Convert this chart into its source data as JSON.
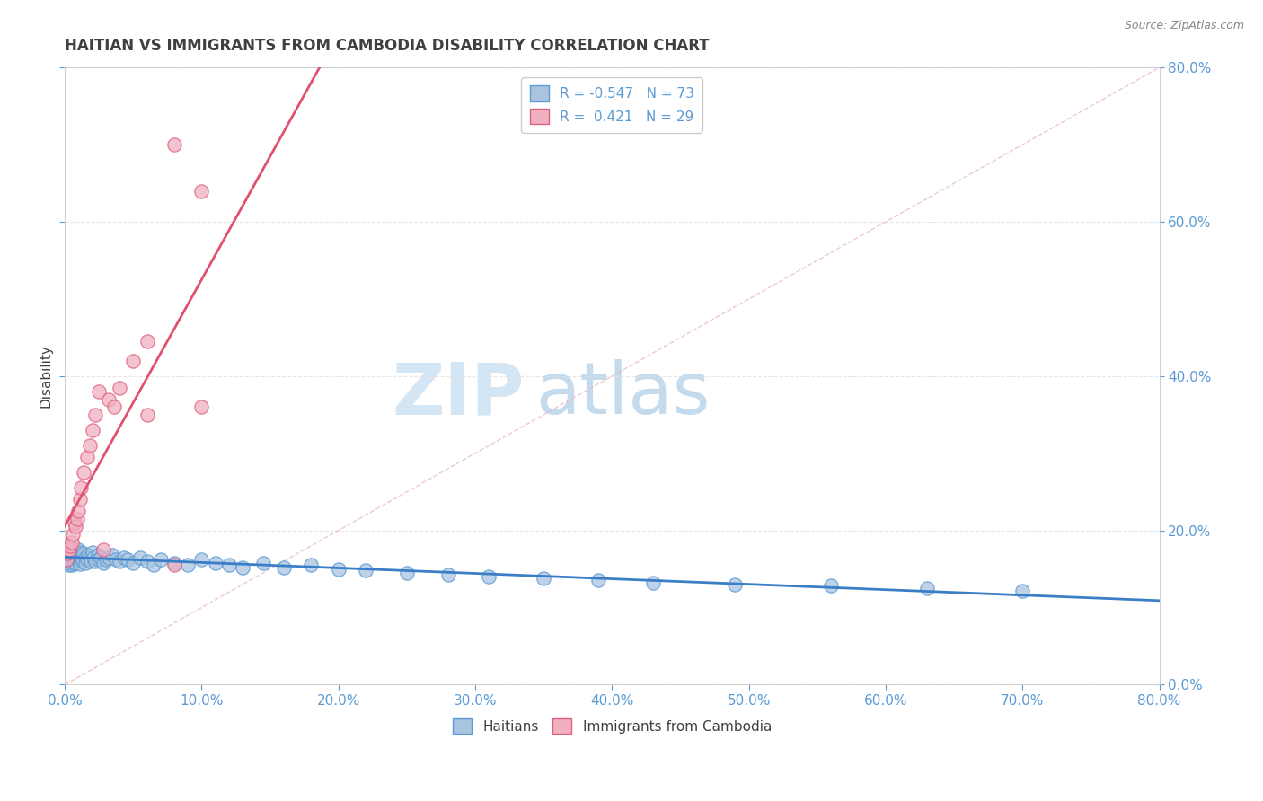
{
  "title": "HAITIAN VS IMMIGRANTS FROM CAMBODIA DISABILITY CORRELATION CHART",
  "source": "Source: ZipAtlas.com",
  "ylabel": "Disability",
  "watermark_zip": "ZIP",
  "watermark_atlas": "atlas",
  "legend_blue_label": "Haitians",
  "legend_pink_label": "Immigrants from Cambodia",
  "blue_R": -0.547,
  "blue_N": 73,
  "pink_R": 0.421,
  "pink_N": 29,
  "blue_scatter_color": "#aac4e0",
  "blue_scatter_edge": "#5b9bd5",
  "pink_scatter_color": "#f0b0c0",
  "pink_scatter_edge": "#e06080",
  "blue_line_color": "#3a7ec8",
  "pink_line_color": "#e05070",
  "diag_line_color": "#c8c8c8",
  "grid_color": "#e0e0e0",
  "title_color": "#404040",
  "axis_tick_color": "#5b9bd5",
  "source_color": "#888888",
  "xlim": [
    0.0,
    0.8
  ],
  "ylim": [
    0.0,
    0.8
  ],
  "blue_scatter_x": [
    0.001,
    0.002,
    0.003,
    0.003,
    0.004,
    0.004,
    0.005,
    0.005,
    0.005,
    0.006,
    0.006,
    0.007,
    0.007,
    0.007,
    0.008,
    0.008,
    0.009,
    0.009,
    0.01,
    0.01,
    0.011,
    0.011,
    0.012,
    0.012,
    0.013,
    0.013,
    0.014,
    0.015,
    0.015,
    0.016,
    0.017,
    0.018,
    0.019,
    0.02,
    0.021,
    0.022,
    0.024,
    0.025,
    0.026,
    0.028,
    0.03,
    0.032,
    0.035,
    0.037,
    0.04,
    0.043,
    0.046,
    0.05,
    0.055,
    0.06,
    0.065,
    0.07,
    0.08,
    0.09,
    0.1,
    0.11,
    0.12,
    0.13,
    0.145,
    0.16,
    0.18,
    0.2,
    0.22,
    0.25,
    0.28,
    0.31,
    0.35,
    0.39,
    0.43,
    0.49,
    0.56,
    0.63,
    0.7
  ],
  "blue_scatter_y": [
    0.175,
    0.165,
    0.155,
    0.18,
    0.16,
    0.17,
    0.165,
    0.155,
    0.175,
    0.162,
    0.158,
    0.168,
    0.172,
    0.16,
    0.165,
    0.158,
    0.17,
    0.162,
    0.168,
    0.175,
    0.163,
    0.157,
    0.172,
    0.165,
    0.168,
    0.16,
    0.17,
    0.165,
    0.158,
    0.162,
    0.168,
    0.165,
    0.16,
    0.172,
    0.165,
    0.16,
    0.168,
    0.162,
    0.165,
    0.158,
    0.162,
    0.165,
    0.168,
    0.162,
    0.16,
    0.165,
    0.162,
    0.158,
    0.165,
    0.16,
    0.155,
    0.162,
    0.158,
    0.155,
    0.162,
    0.158,
    0.155,
    0.152,
    0.158,
    0.152,
    0.155,
    0.15,
    0.148,
    0.145,
    0.142,
    0.14,
    0.138,
    0.135,
    0.132,
    0.13,
    0.128,
    0.125,
    0.122
  ],
  "pink_scatter_x": [
    0.001,
    0.002,
    0.003,
    0.004,
    0.005,
    0.006,
    0.007,
    0.008,
    0.009,
    0.01,
    0.011,
    0.012,
    0.014,
    0.016,
    0.018,
    0.02,
    0.022,
    0.025,
    0.028,
    0.032,
    0.036,
    0.04,
    0.05,
    0.06,
    0.08,
    0.1,
    0.06,
    0.08,
    0.1
  ],
  "pink_scatter_y": [
    0.162,
    0.17,
    0.175,
    0.18,
    0.185,
    0.195,
    0.21,
    0.205,
    0.215,
    0.225,
    0.24,
    0.255,
    0.275,
    0.295,
    0.31,
    0.33,
    0.35,
    0.38,
    0.175,
    0.37,
    0.36,
    0.385,
    0.42,
    0.445,
    0.7,
    0.64,
    0.35,
    0.155,
    0.36
  ]
}
